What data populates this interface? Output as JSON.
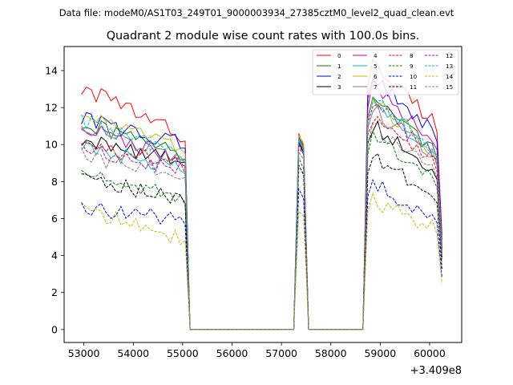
{
  "chart_data": {
    "type": "line",
    "suptitle": "Data file: modeM0/AS1T03_249T01_9000003934_27385cztM0_level2_quad_clean.evt",
    "title": "Quadrant 2 module wise count rates with 100.0s bins.",
    "xlabel": "",
    "ylabel": "",
    "x_offset_label": "+3.409e8",
    "xlim": [
      52600,
      60650
    ],
    "ylim": [
      -0.7,
      15.3
    ],
    "x_ticks": [
      53000,
      54000,
      55000,
      56000,
      57000,
      58000,
      59000,
      60000
    ],
    "x_tick_labels": [
      "53000",
      "54000",
      "55000",
      "56000",
      "57000",
      "58000",
      "59000",
      "60000"
    ],
    "y_ticks": [
      0,
      2,
      4,
      6,
      8,
      10,
      12,
      14
    ],
    "y_tick_labels": [
      "0",
      "2",
      "4",
      "6",
      "8",
      "10",
      "12",
      "14"
    ],
    "legend_loc": "upper right",
    "legend_columns": 4,
    "series": [
      {
        "name": "0",
        "color": "#ff0000",
        "dash": "solid",
        "y1": 13.1,
        "p1": 10.4,
        "p": 10.6,
        "y2": 14.6
      },
      {
        "name": "1",
        "color": "#008000",
        "dash": "solid",
        "y1": 11.2,
        "p1": 9.4,
        "p": 10.2,
        "y2": 12.7
      },
      {
        "name": "2",
        "color": "#0000ff",
        "dash": "solid",
        "y1": 11.4,
        "p1": 10.0,
        "p": 10.4,
        "y2": 13.9
      },
      {
        "name": "3",
        "color": "#000000",
        "dash": "solid",
        "y1": 10.2,
        "p1": 9.2,
        "p": 10.1,
        "y2": 11.2
      },
      {
        "name": "4",
        "color": "#bf00bf",
        "dash": "solid",
        "y1": 11.0,
        "p1": 9.0,
        "p": 10.2,
        "y2": 13.3
      },
      {
        "name": "5",
        "color": "#00bfbf",
        "dash": "solid",
        "y1": 9.8,
        "p1": 8.6,
        "p": 10.3,
        "y2": 12.5
      },
      {
        "name": "6",
        "color": "#bfbf00",
        "dash": "solid",
        "y1": 11.6,
        "p1": 9.7,
        "p": 10.5,
        "y2": 12.6
      },
      {
        "name": "7",
        "color": "#808080",
        "dash": "solid",
        "y1": 11.0,
        "p1": 9.2,
        "p": 10.2,
        "y2": 12.1
      },
      {
        "name": "8",
        "color": "#ff0000",
        "dash": "dashed",
        "y1": 9.9,
        "p1": 8.9,
        "p": 9.8,
        "y2": 11.7
      },
      {
        "name": "9",
        "color": "#008000",
        "dash": "dashed",
        "y1": 8.5,
        "p1": 7.0,
        "p": 9.3,
        "y2": 10.5
      },
      {
        "name": "10",
        "color": "#0000ff",
        "dash": "dashed",
        "y1": 6.7,
        "p1": 5.8,
        "p": 7.6,
        "y2": 8.0
      },
      {
        "name": "11",
        "color": "#000000",
        "dash": "dashed",
        "y1": 8.2,
        "p1": 6.9,
        "p": 8.9,
        "y2": 9.4
      },
      {
        "name": "12",
        "color": "#bf00bf",
        "dash": "dashed",
        "y1": 9.8,
        "p1": 8.6,
        "p": 10.0,
        "y2": 12.4
      },
      {
        "name": "13",
        "color": "#00bfbf",
        "dash": "dashed",
        "y1": 11.3,
        "p1": 9.4,
        "p": 10.2,
        "y2": 12.8
      },
      {
        "name": "14",
        "color": "#bfbf00",
        "dash": "dashed",
        "y1": 6.5,
        "p1": 4.9,
        "p": 6.4,
        "y2": 7.1
      },
      {
        "name": "15",
        "color": "#808080",
        "dash": "dashed",
        "y1": 9.4,
        "p1": 8.4,
        "p": 9.6,
        "y2": 11.1
      }
    ]
  }
}
